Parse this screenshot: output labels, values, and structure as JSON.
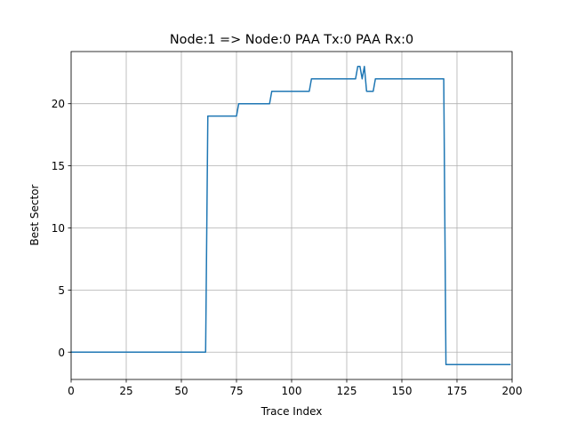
{
  "chart_data": {
    "type": "line",
    "title": "Node:1 => Node:0 PAA Tx:0 PAA Rx:0",
    "xlabel": "Trace Index",
    "ylabel": "Best Sector",
    "xlim": [
      0,
      200
    ],
    "ylim": [
      -2.2,
      24.2
    ],
    "xticks": [
      0,
      25,
      50,
      75,
      100,
      125,
      150,
      175,
      200
    ],
    "yticks": [
      0,
      5,
      10,
      15,
      20
    ],
    "grid": true,
    "line_color": "#1f77b4",
    "series": [
      {
        "x": [
          0,
          61,
          62,
          75,
          76,
          90,
          91,
          108,
          109,
          129,
          130,
          131,
          132,
          133,
          134,
          137,
          138,
          169,
          170,
          199
        ],
        "values": [
          0,
          0,
          19,
          19,
          20,
          20,
          21,
          21,
          22,
          22,
          23,
          23,
          22,
          23,
          21,
          21,
          22,
          22,
          -1,
          -1
        ]
      }
    ]
  }
}
